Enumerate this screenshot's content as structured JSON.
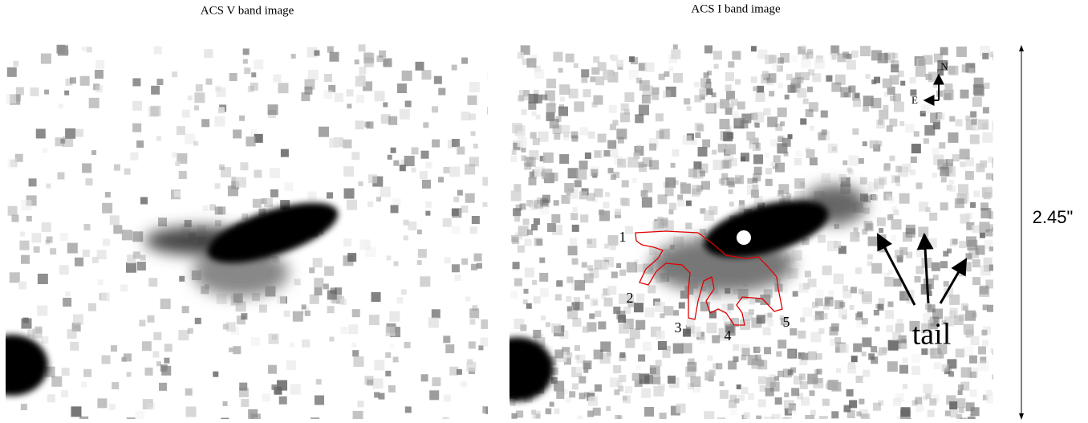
{
  "panels": [
    {
      "title": "ACS V band image"
    },
    {
      "title": "ACS I band image",
      "regions": [
        "1",
        "2",
        "3",
        "4",
        "5"
      ],
      "compass": {
        "north": "N",
        "east": "E"
      },
      "annotation": "tail"
    }
  ],
  "scale": "2.45\""
}
